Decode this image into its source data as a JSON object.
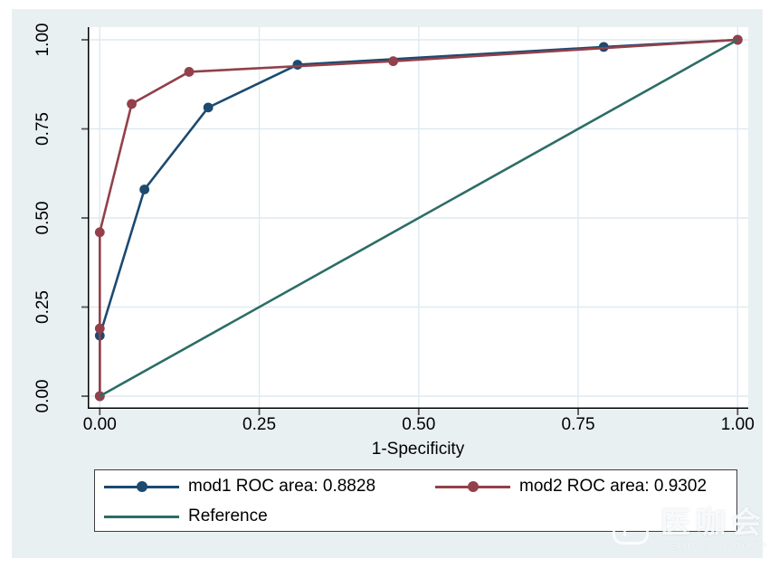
{
  "chart_data": {
    "type": "line",
    "title": "",
    "xlabel": "1-Specificity",
    "ylabel": "",
    "xlim": [
      0,
      1
    ],
    "ylim": [
      0,
      1
    ],
    "grid": true,
    "legend_position": "bottom",
    "x_ticks": {
      "values": [
        0,
        0.25,
        0.5,
        0.75,
        1
      ],
      "labels": [
        "0.00",
        "0.25",
        "0.50",
        "0.75",
        "1.00"
      ]
    },
    "y_ticks": {
      "values": [
        0,
        0.25,
        0.5,
        0.75,
        1
      ],
      "labels": [
        "0.00",
        "0.25",
        "0.50",
        "0.75",
        "1.00"
      ]
    },
    "series": [
      {
        "name": "mod1 ROC area: 0.8828",
        "color": "#1c4a70",
        "markers": true,
        "points": [
          [
            0,
            0
          ],
          [
            0,
            0.17
          ],
          [
            0.07,
            0.58
          ],
          [
            0.17,
            0.81
          ],
          [
            0.31,
            0.93
          ],
          [
            0.79,
            0.98
          ],
          [
            1,
            1
          ]
        ]
      },
      {
        "name": "mod2 ROC area: 0.9302",
        "color": "#93404a",
        "markers": true,
        "points": [
          [
            0,
            0
          ],
          [
            0,
            0.19
          ],
          [
            0,
            0.46
          ],
          [
            0.05,
            0.82
          ],
          [
            0.14,
            0.91
          ],
          [
            0.46,
            0.94
          ],
          [
            1,
            1
          ]
        ]
      },
      {
        "name": "Reference",
        "color": "#2d6d66",
        "markers": false,
        "points": [
          [
            0,
            0
          ],
          [
            1,
            1
          ]
        ]
      }
    ]
  },
  "colors": {
    "figure_background": "#e9f0f2",
    "plot_background": "#ffffff",
    "grid": "#dfeaf0",
    "axis": "#000000"
  },
  "watermark": {
    "title": "医咖会",
    "subtitle": "MEDIECO GROUP"
  }
}
